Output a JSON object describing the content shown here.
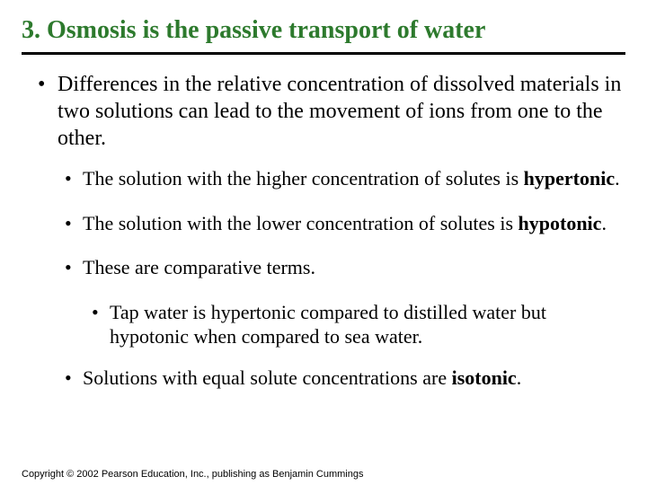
{
  "title": "3. Osmosis is the passive transport of water",
  "bullet1": "Differences in the relative concentration of dissolved materials in two solutions can lead to the movement of ions from one to the other.",
  "sub1_pre": "The solution with the higher concentration of solutes is ",
  "sub1_bold": "hypertonic",
  "sub1_post": ".",
  "sub2_pre": "The solution with the lower concentration of solutes is ",
  "sub2_bold": "hypotonic",
  "sub2_post": ".",
  "sub3": "These are comparative terms.",
  "sub3a": "Tap water is hypertonic compared to distilled water but hypotonic when compared to sea water.",
  "sub4_pre": "Solutions with equal solute concentrations are ",
  "sub4_bold": "isotonic",
  "sub4_post": ".",
  "copyright": "Copyright © 2002 Pearson Education, Inc., publishing as Benjamin Cummings",
  "title_color": "#2d7a2d"
}
